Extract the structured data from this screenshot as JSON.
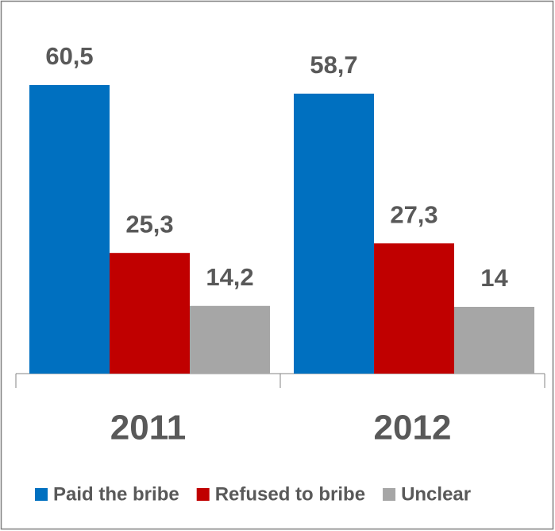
{
  "chart_data": {
    "type": "bar",
    "categories": [
      "2011",
      "2012"
    ],
    "series": [
      {
        "name": "Paid the bribe",
        "color": "#0070c0",
        "values": [
          60.5,
          58.7
        ],
        "value_labels": [
          "60,5",
          "58,7"
        ]
      },
      {
        "name": "Refused to bribe",
        "color": "#c00000",
        "values": [
          25.3,
          27.3
        ],
        "value_labels": [
          "25,3",
          "27,3"
        ]
      },
      {
        "name": "Unclear",
        "color": "#a6a6a6",
        "values": [
          14.2,
          14
        ],
        "value_labels": [
          "14,2",
          "14"
        ]
      }
    ],
    "legend": "bottom"
  }
}
